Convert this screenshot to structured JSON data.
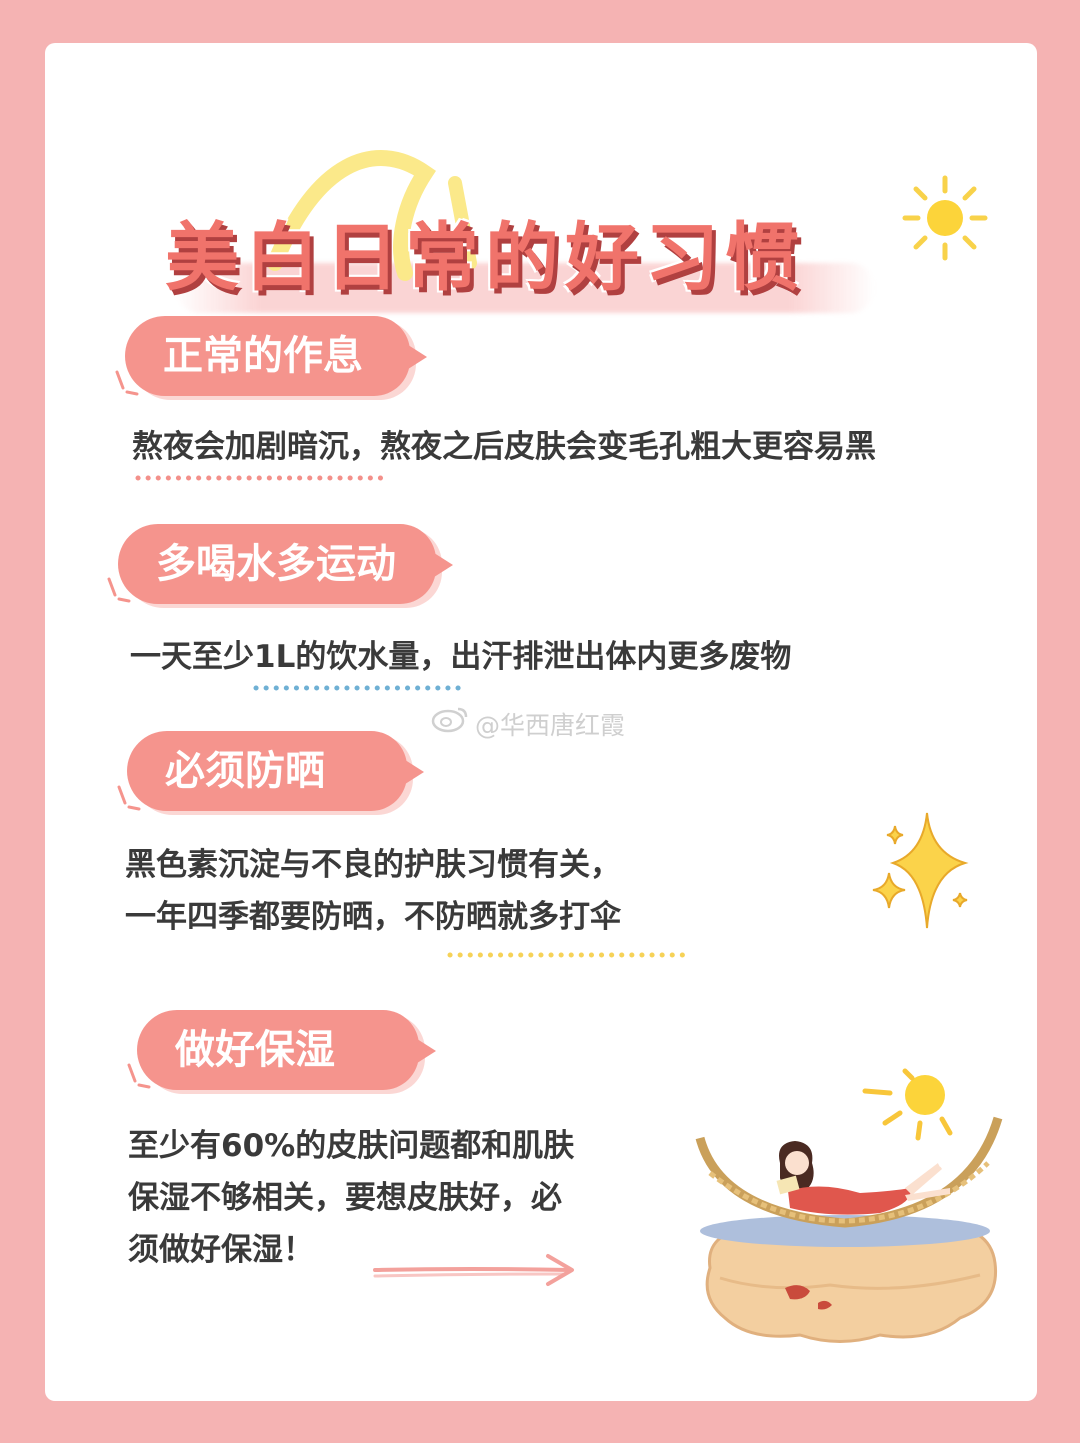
{
  "title": "美白日常的好习惯",
  "watermark": "@华西唐红霞",
  "sections": [
    {
      "heading": "正常的作息",
      "lines": [
        "熬夜会加剧暗沉，熬夜之后皮肤会变毛孔粗大更容易黑"
      ],
      "underline_color": "#f3908a"
    },
    {
      "heading": "多喝水多运动",
      "lines": [
        "一天至少1L的饮水量，出汗排泄出体内更多废物"
      ],
      "underline_color": "#6fb0d4"
    },
    {
      "heading": "必须防晒",
      "lines": [
        "黑色素沉淀与不良的护肤习惯有关，",
        "一年四季都要防晒，不防晒就多打伞"
      ],
      "underline_color": "#f6d257"
    },
    {
      "heading": "做好保湿",
      "lines": [
        "至少有60%的皮肤问题都和肌肤",
        "保湿不够相关，要想皮肤好，必",
        "须做好保湿！"
      ],
      "underline_color": "#f3a19c"
    }
  ],
  "colors": {
    "page_border": "#f5b3b3",
    "bubble": "#f5948d",
    "title": "#f0736b",
    "text": "#3a3a3a"
  },
  "icons": [
    "sun-icon",
    "sparkle-icon",
    "weibo-icon",
    "arrow-icon",
    "girl-hammock-illustration"
  ]
}
